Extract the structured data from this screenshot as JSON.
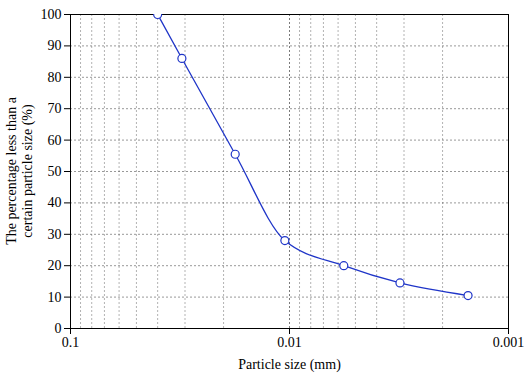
{
  "chart_data": {
    "type": "line",
    "x_label": "Particle size (mm)",
    "y_label": "The percentage less than a certain particle size (%)",
    "x": [
      0.04,
      0.031,
      0.0177,
      0.0105,
      0.00565,
      0.00313,
      0.00153
    ],
    "values": [
      100,
      86,
      55.5,
      28,
      20,
      14.5,
      10.5
    ],
    "color": "#1f35c8",
    "marker": "circle",
    "log": "x",
    "grid": true,
    "xlim": [
      0.1,
      0.001
    ],
    "ylim": [
      0,
      100
    ],
    "xticks": [
      0.1,
      0.01,
      0.001
    ],
    "yticks": [
      0,
      10,
      20,
      30,
      40,
      50,
      60,
      70,
      80,
      90,
      100
    ]
  }
}
